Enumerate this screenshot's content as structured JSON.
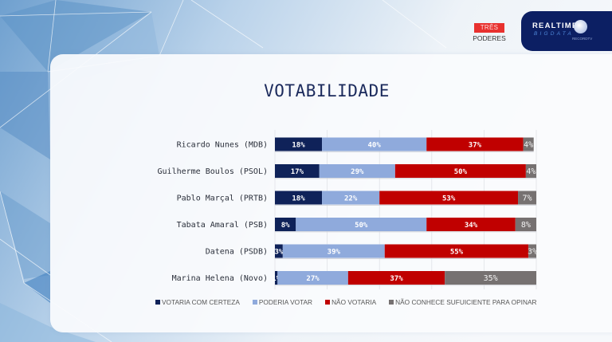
{
  "header": {
    "brand_top": "TRÊS",
    "brand_bottom": "PODERES",
    "logo_line1": "REALTIME",
    "logo_line2": "BIGDATA",
    "logo_sub": "RECORDTV"
  },
  "chart_data": {
    "type": "bar",
    "orientation": "horizontal",
    "stacked": true,
    "title": "VOTABILIDADE",
    "xlabel": "",
    "ylabel": "",
    "xlim": [
      0,
      100
    ],
    "grid": true,
    "legend_position": "bottom",
    "categories": [
      "Ricardo Nunes (MDB)",
      "Guilherme Boulos (PSOL)",
      "Pablo Marçal (PRTB)",
      "Tabata Amaral (PSB)",
      "Datena (PSDB)",
      "Marina Helena (Novo)"
    ],
    "series": [
      {
        "name": "VOTARIA COM CERTEZA",
        "color": "#0f2259",
        "values": [
          18,
          17,
          18,
          8,
          3,
          1
        ]
      },
      {
        "name": "PODERIA VOTAR",
        "color": "#8faadc",
        "values": [
          40,
          29,
          22,
          50,
          39,
          27
        ]
      },
      {
        "name": "NÃO VOTARIA",
        "color": "#c00000",
        "values": [
          37,
          50,
          53,
          34,
          55,
          37
        ]
      },
      {
        "name": "NÃO CONHECE SUFUICIENTE PARA OPINAR",
        "color": "#767171",
        "values": [
          4,
          4,
          7,
          8,
          3,
          35
        ]
      }
    ],
    "value_suffix": "%"
  }
}
